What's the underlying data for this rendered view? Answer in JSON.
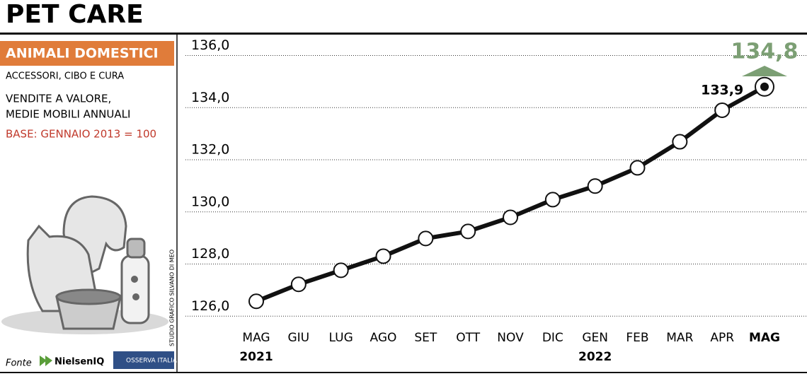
{
  "header": {
    "title": "PET CARE"
  },
  "sidebar": {
    "badge": "ANIMALI DOMESTICI",
    "subtitle": "ACCESSORI, CIBO E CURA",
    "description": [
      "VENDITE A VALORE,",
      "MEDIE MOBILI ANNUALI"
    ],
    "base": "BASE: GENNAIO 2013 = 100",
    "credit": "STUDIO GRAFICO SILVANO DI MEO",
    "source_label": "Fonte",
    "sources": [
      "NielsenIQ",
      "OSSERVA ITALIA"
    ]
  },
  "chart_data": {
    "type": "line",
    "categories": [
      "MAG",
      "GIU",
      "LUG",
      "AGO",
      "SET",
      "OTT",
      "NOV",
      "DIC",
      "GEN",
      "FEB",
      "MAR",
      "APR",
      "MAG"
    ],
    "year_labels": [
      "2021",
      null,
      null,
      null,
      null,
      null,
      null,
      null,
      "2022",
      null,
      null,
      null,
      null
    ],
    "series": [
      {
        "color": "#111111",
        "values": [
          126.57,
          127.22,
          127.76,
          128.3,
          128.98,
          129.25,
          129.79,
          130.47,
          130.99,
          131.69,
          132.69,
          133.9,
          134.8
        ],
        "value_labels": [
          null,
          null,
          null,
          null,
          null,
          null,
          null,
          null,
          null,
          null,
          null,
          "133,9",
          "134,8"
        ]
      }
    ],
    "highlight_color": "#7c9f74",
    "ylim": [
      125.6,
      136.8
    ],
    "yticks": [
      {
        "value": 126,
        "label": "126,0"
      },
      {
        "value": 128,
        "label": "128,0"
      },
      {
        "value": 130,
        "label": "130,0"
      },
      {
        "value": 132,
        "label": "132,0"
      },
      {
        "value": 134,
        "label": "134,0"
      },
      {
        "value": 136,
        "label": "136,0"
      }
    ],
    "grid": true
  }
}
